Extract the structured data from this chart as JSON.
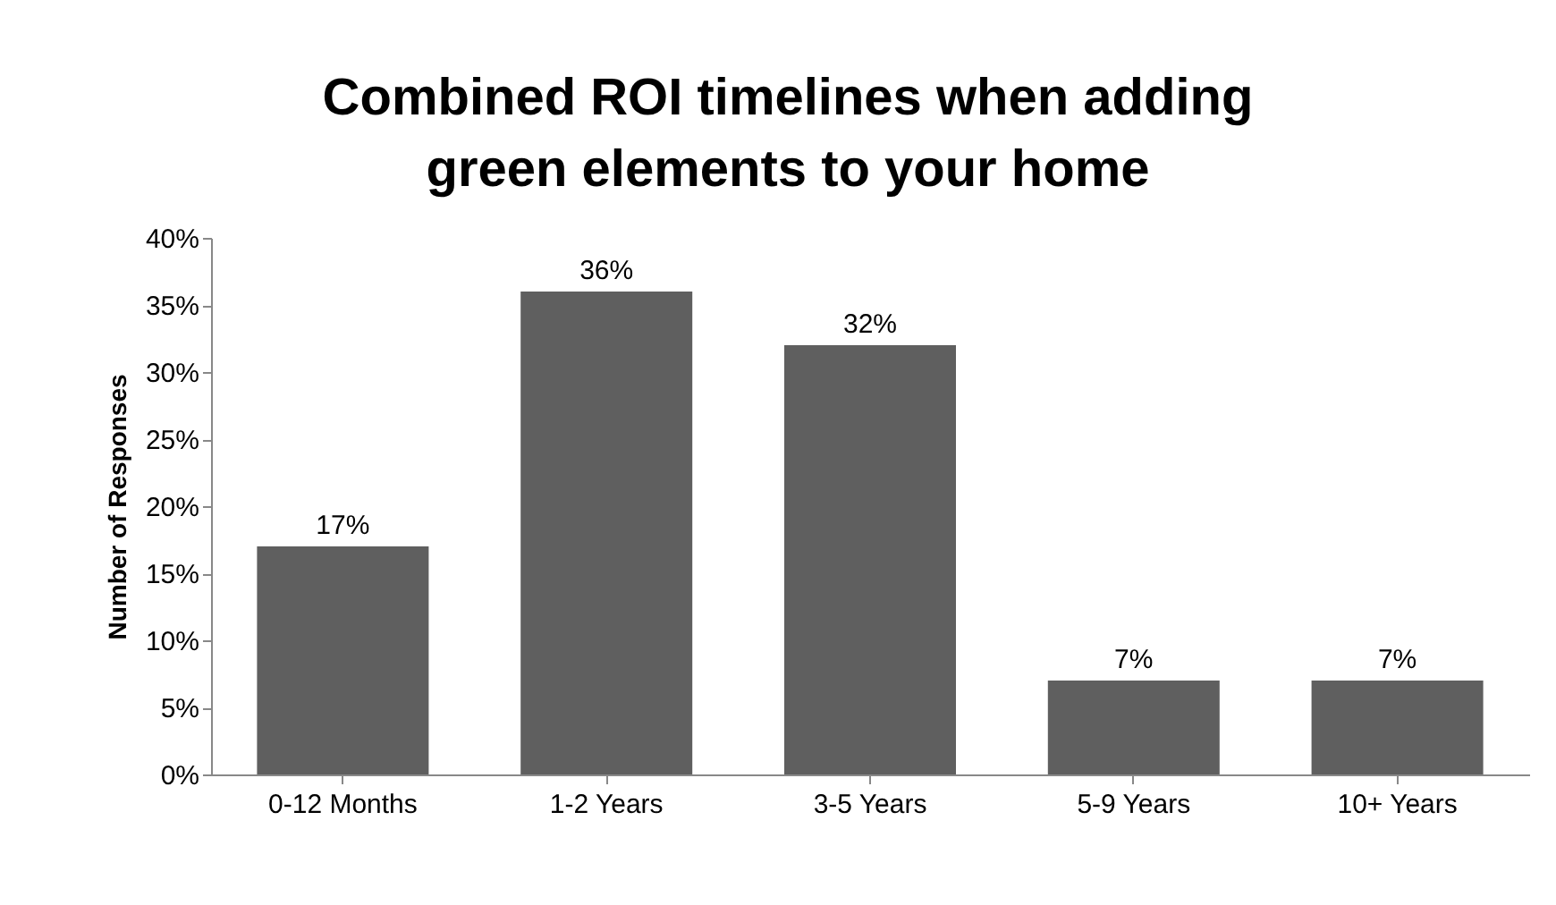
{
  "chart_data": {
    "type": "bar",
    "title": "Combined ROI timelines when adding green elements to your home",
    "ylabel": "Number of Responses",
    "categories": [
      "0-12 Months",
      "1-2 Years",
      "3-5 Years",
      "5-9 Years",
      "10+ Years"
    ],
    "values": [
      17,
      36,
      32,
      7,
      7
    ],
    "value_labels": [
      "17%",
      "36%",
      "32%",
      "7%",
      "7%"
    ],
    "color": "#5f5f5f",
    "ylim": [
      0,
      40
    ],
    "yticks": [
      {
        "value": 0,
        "label": "0%"
      },
      {
        "value": 5,
        "label": "5%"
      },
      {
        "value": 10,
        "label": "10%"
      },
      {
        "value": 15,
        "label": "15%"
      },
      {
        "value": 20,
        "label": "20%"
      },
      {
        "value": 25,
        "label": "25%"
      },
      {
        "value": 30,
        "label": "30%"
      },
      {
        "value": 35,
        "label": "35%"
      },
      {
        "value": 40,
        "label": "40%"
      }
    ],
    "grid": false
  }
}
